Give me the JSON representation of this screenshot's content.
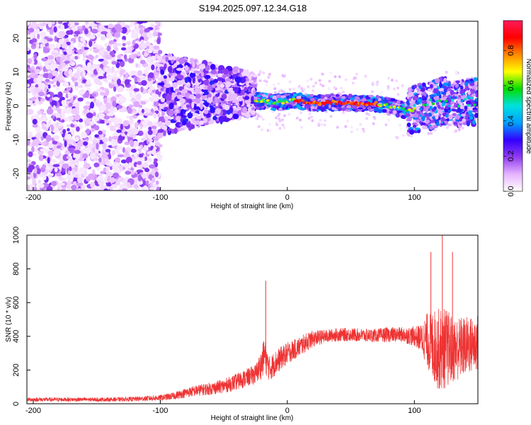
{
  "title": "S194.2025.097.12.34.G18",
  "chart_data": [
    {
      "type": "heatmap",
      "xlabel": "Height of straight line (km)",
      "ylabel": "Frequency (Hz)",
      "xlim": [
        -205,
        150
      ],
      "ylim": [
        -25,
        25
      ],
      "xticks": [
        -200,
        -100,
        0,
        100
      ],
      "yticks": [
        -20,
        -10,
        0,
        10,
        20
      ],
      "colorbar": {
        "label": "Normalized spectral amplitude",
        "range": [
          0,
          0.97
        ],
        "ticks": [
          0.0,
          0.2,
          0.4,
          0.6,
          0.8
        ],
        "colors": [
          "#ffffff",
          "#e6b3ff",
          "#8f3cf0",
          "#3300ff",
          "#00a0ff",
          "#00e0e0",
          "#00dd00",
          "#ffff00",
          "#ff8800",
          "#ff0000",
          "#ff1a5a"
        ]
      },
      "ridge": [
        {
          "x": -25,
          "y": 1.6
        },
        {
          "x": -15,
          "y": 1.2
        },
        {
          "x": -5,
          "y": 1.0
        },
        {
          "x": 5,
          "y": 1.8
        },
        {
          "x": 15,
          "y": 1.0
        },
        {
          "x": 25,
          "y": 0.8
        },
        {
          "x": 35,
          "y": 1.0
        },
        {
          "x": 45,
          "y": 1.0
        },
        {
          "x": 55,
          "y": 0.6
        },
        {
          "x": 65,
          "y": 0.8
        },
        {
          "x": 75,
          "y": 0.4
        },
        {
          "x": 85,
          "y": -0.6
        },
        {
          "x": 95,
          "y": -1.5
        },
        {
          "x": 105,
          "y": -0.5
        },
        {
          "x": 115,
          "y": 0.5
        },
        {
          "x": 125,
          "y": 1.5
        },
        {
          "x": 135,
          "y": 1.0
        },
        {
          "x": 145,
          "y": 1.5
        }
      ]
    },
    {
      "type": "line",
      "xlabel": "Height of straight line (km)",
      "ylabel": "SNR (10 * v/v)",
      "xlim": [
        -205,
        150
      ],
      "ylim": [
        0,
        1000
      ],
      "xticks": [
        -200,
        -100,
        0,
        100
      ],
      "yticks": [
        0,
        200,
        400,
        600,
        800,
        1000
      ],
      "color": "#ee3333",
      "series": [
        {
          "x": [
            -205,
            -180,
            -160,
            -140,
            -120,
            -100,
            -90,
            -80,
            -70,
            -60,
            -50,
            -40,
            -30,
            -25,
            -20,
            -18,
            -16,
            -14,
            -12,
            -10,
            -5,
            0,
            5,
            10,
            15,
            20,
            30,
            40,
            50,
            60,
            70,
            80,
            90,
            100,
            105,
            110,
            115,
            120,
            125,
            130,
            135,
            140,
            145,
            150
          ],
          "y": [
            25,
            25,
            25,
            25,
            28,
            35,
            45,
            65,
            80,
            90,
            105,
            130,
            160,
            175,
            240,
            300,
            240,
            210,
            220,
            240,
            270,
            300,
            320,
            340,
            365,
            385,
            400,
            410,
            410,
            405,
            405,
            410,
            410,
            400,
            390,
            380,
            340,
            320,
            330,
            320,
            330,
            340,
            350,
            360
          ],
          "spread": [
            12,
            12,
            12,
            12,
            14,
            18,
            22,
            28,
            34,
            38,
            42,
            50,
            55,
            60,
            90,
            110,
            85,
            75,
            75,
            75,
            70,
            65,
            60,
            60,
            55,
            50,
            40,
            40,
            40,
            40,
            40,
            45,
            45,
            60,
            80,
            160,
            220,
            250,
            240,
            200,
            190,
            180,
            170,
            170
          ]
        }
      ],
      "annotations": [
        {
          "x": -17,
          "y": 730
        },
        {
          "x": 113,
          "y": 900
        },
        {
          "x": 122,
          "y": 1000
        },
        {
          "x": 130,
          "y": 900
        }
      ]
    }
  ]
}
